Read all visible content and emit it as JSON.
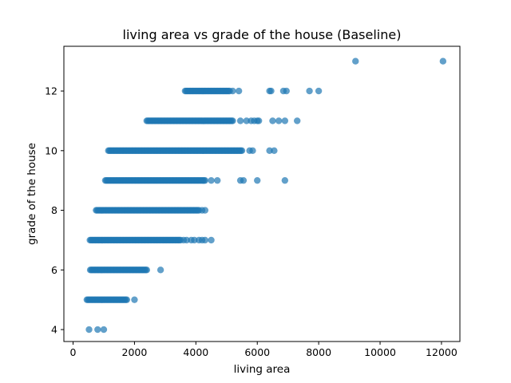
{
  "chart_data": {
    "type": "scatter",
    "title": "living area vs grade of the house (Baseline)",
    "xlabel": "living area",
    "ylabel": "grade of the house",
    "xlim": [
      -300,
      12600
    ],
    "ylim": [
      3.6,
      13.5
    ],
    "xticks": [
      0,
      2000,
      4000,
      6000,
      8000,
      10000,
      12000
    ],
    "yticks": [
      4,
      6,
      8,
      10,
      12
    ],
    "grid": false,
    "legend": "none",
    "point_color": "#1f77b4",
    "point_alpha": 0.7,
    "series": [
      {
        "ranges": [
          {
            "y": 4,
            "x": [
              520,
              800,
              1000
            ]
          },
          {
            "y": 5,
            "x": [
              450,
              1750
            ],
            "extra": [
              2000
            ]
          },
          {
            "y": 6,
            "x": [
              560,
              2400
            ],
            "extra": [
              2850
            ]
          },
          {
            "y": 7,
            "x": [
              550,
              3500
            ],
            "extra": [
              3600,
              3700,
              3850,
              3950,
              4100,
              4200,
              4300,
              4500
            ]
          },
          {
            "y": 8,
            "x": [
              750,
              4100
            ],
            "extra": [
              4200,
              4300
            ]
          },
          {
            "y": 9,
            "x": [
              1050,
              4300
            ],
            "extra": [
              4500,
              4700,
              5450,
              5550,
              6000,
              6900
            ]
          },
          {
            "y": 10,
            "x": [
              1150,
              5500
            ],
            "extra": [
              5750,
              5850,
              6400,
              6550
            ]
          },
          {
            "y": 11,
            "x": [
              2400,
              5200
            ],
            "extra": [
              5450,
              5650,
              5800,
              5900,
              6000,
              6050,
              6500,
              6700,
              6900,
              7300
            ]
          },
          {
            "y": 12,
            "x": [
              3650,
              5100
            ],
            "extra": [
              5200,
              5400,
              6400,
              6450,
              6850,
              6950,
              7700,
              8000
            ]
          },
          {
            "y": 13,
            "x": [],
            "extra": [
              9200,
              12050
            ]
          }
        ]
      }
    ]
  }
}
